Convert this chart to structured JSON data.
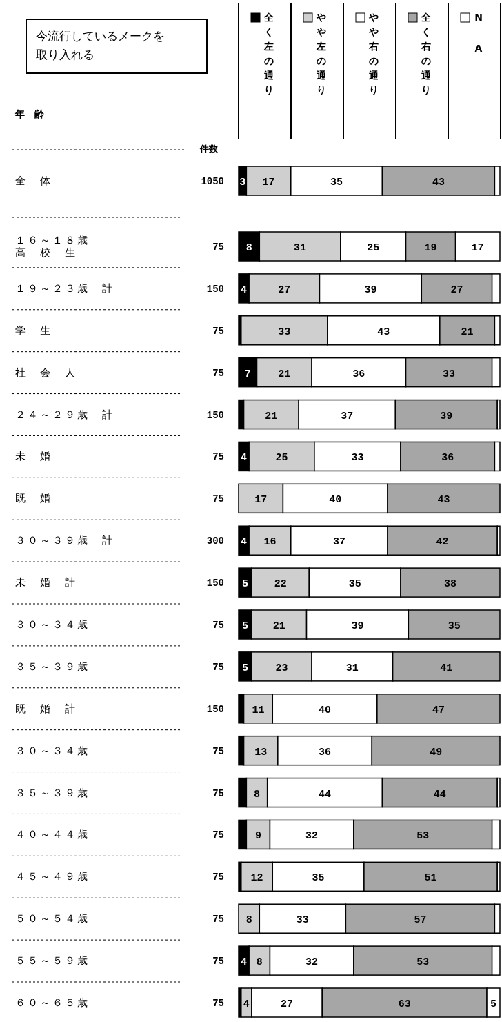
{
  "chart_data": {
    "type": "bar",
    "orientation": "horizontal",
    "stacked": true,
    "title": "今流行しているメークを取り入れる",
    "ylabel": "年　齢",
    "y2label": "件数",
    "categories": [
      "全　体",
      "１６～１８歳高　校　生",
      "１９～２３歳　計",
      "学　生",
      "社　会　人",
      "２４～２９歳　計",
      "未　婚",
      "既　婚",
      "３０～３９歳　計",
      "未　婚　計",
      "３０～３４歳",
      "３５～３９歳",
      "既　婚　計",
      "３０～３４歳",
      "３５～３９歳",
      "４０～４４歳",
      "４５～４９歳",
      "５０～５４歳",
      "５５～５９歳",
      "６０～６５歳"
    ],
    "y2_categories": [
      "1050",
      "75",
      "150",
      "75",
      "75",
      "150",
      "75",
      "75",
      "300",
      "150",
      "75",
      "75",
      "150",
      "75",
      "75",
      "75",
      "75",
      "75",
      "75",
      "75"
    ],
    "xlim": [
      0,
      100
    ],
    "series": [
      {
        "name": "全く左の通り",
        "color": "#000000",
        "values": [
          3,
          8,
          4,
          1,
          7,
          2,
          4,
          0,
          4,
          5,
          5,
          5,
          2,
          2,
          3,
          3,
          1,
          0,
          4,
          1
        ],
        "value_labels": [
          "3",
          "8",
          "4",
          null,
          "7",
          null,
          "4",
          null,
          "4",
          "5",
          "5",
          "5",
          null,
          null,
          null,
          null,
          null,
          null,
          "4",
          null
        ]
      },
      {
        "name": "やや左の通り",
        "color": "#cfcfcf",
        "values": [
          17,
          31,
          27,
          33,
          21,
          21,
          25,
          17,
          16,
          22,
          21,
          23,
          11,
          13,
          8,
          9,
          12,
          8,
          8,
          4
        ],
        "value_labels": [
          "17",
          "31",
          "27",
          "33",
          "21",
          "21",
          "25",
          "17",
          "16",
          "22",
          "21",
          "23",
          "11",
          "13",
          "8",
          "9",
          "12",
          "8",
          "8",
          "4"
        ]
      },
      {
        "name": "やや右の通り",
        "color": "#ffffff",
        "values": [
          35,
          25,
          39,
          43,
          36,
          37,
          33,
          40,
          37,
          35,
          39,
          31,
          40,
          36,
          44,
          32,
          35,
          33,
          32,
          27
        ],
        "value_labels": [
          "35",
          "25",
          "39",
          "43",
          "36",
          "37",
          "33",
          "40",
          "37",
          "35",
          "39",
          "31",
          "40",
          "36",
          "44",
          "32",
          "35",
          "33",
          "32",
          "27"
        ]
      },
      {
        "name": "全く右の通り",
        "color": "#a6a6a6",
        "values": [
          43,
          19,
          27,
          21,
          33,
          39,
          36,
          43,
          42,
          38,
          35,
          41,
          47,
          49,
          44,
          53,
          51,
          57,
          53,
          63
        ],
        "value_labels": [
          "43",
          "19",
          "27",
          "21",
          "33",
          "39",
          "36",
          "43",
          "42",
          "38",
          "35",
          "41",
          "47",
          "49",
          "44",
          "53",
          "51",
          "57",
          "53",
          "63"
        ]
      },
      {
        "name": "NA",
        "color": "#ffffff",
        "values": [
          2,
          17,
          3,
          2,
          3,
          1,
          2,
          0,
          1,
          0,
          0,
          0,
          0,
          0,
          1,
          3,
          1,
          2,
          3,
          5
        ],
        "value_labels": [
          null,
          "17",
          null,
          null,
          null,
          null,
          null,
          null,
          null,
          null,
          null,
          null,
          null,
          null,
          null,
          null,
          null,
          null,
          null,
          "5"
        ]
      }
    ],
    "legend": "top",
    "grid": false,
    "tick_labels": "y"
  }
}
